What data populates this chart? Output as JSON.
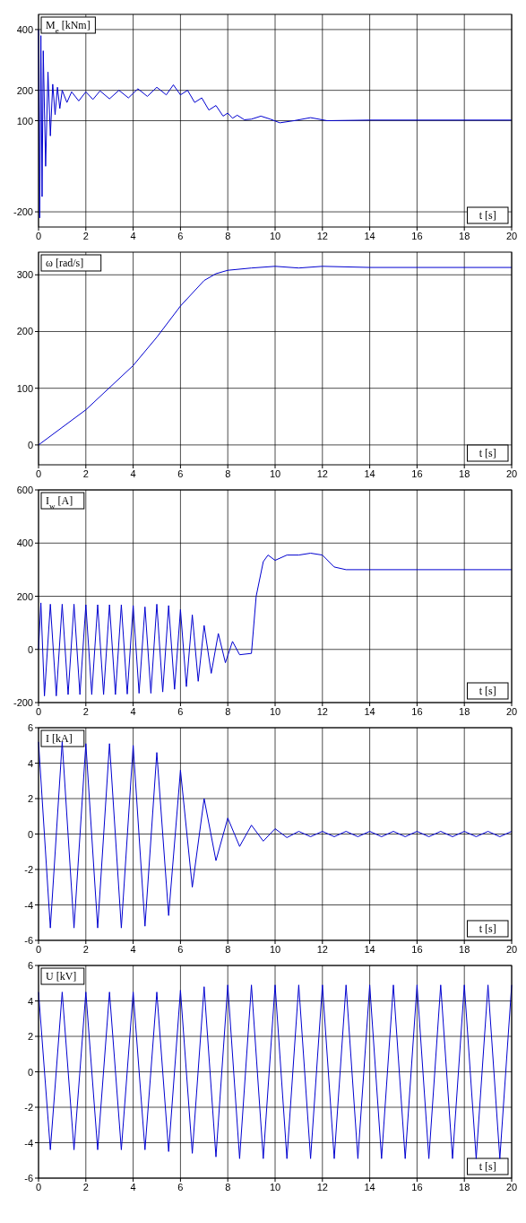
{
  "chart_data": [
    {
      "type": "line",
      "ylabel": "M$_{e}$ [kNm]",
      "xlabel": "t [s]",
      "xlim": [
        0,
        20
      ],
      "xticks": [
        0,
        2,
        4,
        6,
        8,
        10,
        12,
        14,
        16,
        18,
        20
      ],
      "ylim": [
        -250,
        450
      ],
      "yticks": [
        -200,
        100,
        200,
        400
      ],
      "grid": true,
      "series": [
        {
          "color": "#0000d0",
          "x": [
            0,
            0.05,
            0.1,
            0.15,
            0.2,
            0.3,
            0.4,
            0.5,
            0.6,
            0.7,
            0.8,
            0.9,
            1.0,
            1.2,
            1.4,
            1.7,
            2.0,
            2.3,
            2.6,
            3.0,
            3.4,
            3.8,
            4.2,
            4.6,
            5.0,
            5.4,
            5.7,
            6.0,
            6.3,
            6.6,
            6.9,
            7.2,
            7.5,
            7.8,
            8.0,
            8.2,
            8.4,
            8.7,
            9.0,
            9.4,
            9.8,
            10.2,
            10.8,
            11.5,
            12.2,
            14,
            20
          ],
          "values": [
            400,
            -220,
            380,
            -150,
            330,
            -50,
            260,
            50,
            220,
            120,
            210,
            140,
            200,
            160,
            195,
            165,
            195,
            170,
            198,
            172,
            200,
            175,
            205,
            180,
            210,
            185,
            218,
            185,
            200,
            160,
            175,
            135,
            150,
            115,
            125,
            108,
            118,
            103,
            105,
            115,
            105,
            93,
            100,
            110,
            100,
            102,
            102
          ]
        }
      ]
    },
    {
      "type": "line",
      "ylabel": "ω [rad/s]",
      "xlabel": "t [s]",
      "xlim": [
        0,
        20
      ],
      "xticks": [
        0,
        2,
        4,
        6,
        8,
        10,
        12,
        14,
        16,
        18,
        20
      ],
      "ylim": [
        -35,
        340
      ],
      "yticks": [
        0,
        100,
        200,
        300
      ],
      "grid": true,
      "series": [
        {
          "color": "#0000d0",
          "x": [
            0,
            2,
            4,
            5,
            6,
            7,
            7.5,
            8,
            9,
            10,
            11,
            12,
            14,
            20
          ],
          "values": [
            0,
            62,
            140,
            190,
            245,
            290,
            302,
            308,
            312,
            315,
            312,
            315,
            313,
            313
          ]
        }
      ]
    },
    {
      "type": "line",
      "ylabel": "I$_{w}$ [A]",
      "xlabel": "t [s]",
      "xlim": [
        0,
        20
      ],
      "xticks": [
        0,
        2,
        4,
        6,
        8,
        10,
        12,
        14,
        16,
        18,
        20
      ],
      "ylim": [
        -200,
        600
      ],
      "yticks": [
        -200,
        0,
        200,
        400,
        600
      ],
      "grid": true,
      "series": [
        {
          "color": "#0000d0",
          "x": [
            0,
            0.1,
            0.25,
            0.5,
            0.75,
            1,
            1.25,
            1.5,
            1.75,
            2,
            2.25,
            2.5,
            2.75,
            3,
            3.25,
            3.5,
            3.75,
            4,
            4.25,
            4.5,
            4.75,
            5,
            5.25,
            5.5,
            5.75,
            6,
            6.25,
            6.5,
            6.75,
            7,
            7.3,
            7.6,
            7.9,
            8.2,
            8.5,
            9,
            9.2,
            9.5,
            9.7,
            10,
            10.5,
            11,
            11.5,
            12,
            12.5,
            13,
            20
          ],
          "values": [
            0,
            175,
            -175,
            170,
            -175,
            170,
            -170,
            170,
            -170,
            168,
            -170,
            168,
            -170,
            168,
            -170,
            168,
            -168,
            165,
            -165,
            160,
            -165,
            170,
            -160,
            165,
            -150,
            150,
            -140,
            130,
            -120,
            90,
            -90,
            60,
            -50,
            30,
            -20,
            -15,
            200,
            330,
            355,
            335,
            355,
            355,
            362,
            355,
            310,
            300,
            300
          ]
        }
      ]
    },
    {
      "type": "line",
      "ylabel": "I [kA]",
      "xlabel": "t [s]",
      "xlim": [
        0,
        20
      ],
      "xticks": [
        0,
        2,
        4,
        6,
        8,
        10,
        12,
        14,
        16,
        18,
        20
      ],
      "ylim": [
        -6,
        6
      ],
      "yticks": [
        -6,
        -4,
        -2,
        0,
        2,
        4,
        6
      ],
      "grid": true,
      "series": [
        {
          "color": "#0000d0",
          "x": [
            0,
            0.5,
            1,
            1.5,
            2,
            2.5,
            3,
            3.5,
            4,
            4.5,
            5,
            5.5,
            6,
            6.5,
            7,
            7.5,
            8,
            8.5,
            9,
            9.5,
            10,
            10.5,
            11,
            11.5,
            12,
            12.5,
            13,
            13.5,
            14,
            14.5,
            15,
            15.5,
            16,
            16.5,
            17,
            17.5,
            18,
            18.5,
            19,
            19.5,
            20
          ],
          "values": [
            5.2,
            -5.3,
            5.2,
            -5.3,
            5.1,
            -5.3,
            5.1,
            -5.3,
            5.0,
            -5.2,
            4.6,
            -4.6,
            3.6,
            -3.0,
            2.0,
            -1.5,
            0.9,
            -0.7,
            0.5,
            -0.4,
            0.3,
            -0.2,
            0.15,
            -0.15,
            0.15,
            -0.15,
            0.15,
            -0.15,
            0.15,
            -0.15,
            0.15,
            -0.15,
            0.15,
            -0.15,
            0.15,
            -0.15,
            0.15,
            -0.15,
            0.15,
            -0.15,
            0.15
          ]
        }
      ]
    },
    {
      "type": "line",
      "ylabel": "U [kV]",
      "xlabel": "t [s]",
      "xlim": [
        0,
        20
      ],
      "xticks": [
        0,
        2,
        4,
        6,
        8,
        10,
        12,
        14,
        16,
        18,
        20
      ],
      "ylim": [
        -6,
        6
      ],
      "yticks": [
        -6,
        -4,
        -2,
        0,
        2,
        4,
        6
      ],
      "grid": true,
      "series": [
        {
          "color": "#0000d0",
          "x": [
            0,
            0.5,
            1,
            1.5,
            2,
            2.5,
            3,
            3.5,
            4,
            4.5,
            5,
            5.5,
            6,
            6.5,
            7,
            7.5,
            8,
            8.5,
            9,
            9.5,
            10,
            10.5,
            11,
            11.5,
            12,
            12.5,
            13,
            13.5,
            14,
            14.5,
            15,
            15.5,
            16,
            16.5,
            17,
            17.5,
            18,
            18.5,
            19,
            19.5,
            20
          ],
          "values": [
            4.5,
            -4.4,
            4.5,
            -4.4,
            4.5,
            -4.4,
            4.5,
            -4.4,
            4.5,
            -4.4,
            4.5,
            -4.5,
            4.6,
            -4.6,
            4.8,
            -4.8,
            4.9,
            -4.9,
            4.9,
            -4.9,
            4.9,
            -4.9,
            4.9,
            -4.9,
            4.9,
            -4.9,
            4.9,
            -4.9,
            4.9,
            -4.9,
            4.9,
            -4.9,
            4.9,
            -4.9,
            4.9,
            -4.9,
            4.9,
            -4.9,
            4.9,
            -4.9,
            4.9
          ]
        }
      ]
    }
  ]
}
